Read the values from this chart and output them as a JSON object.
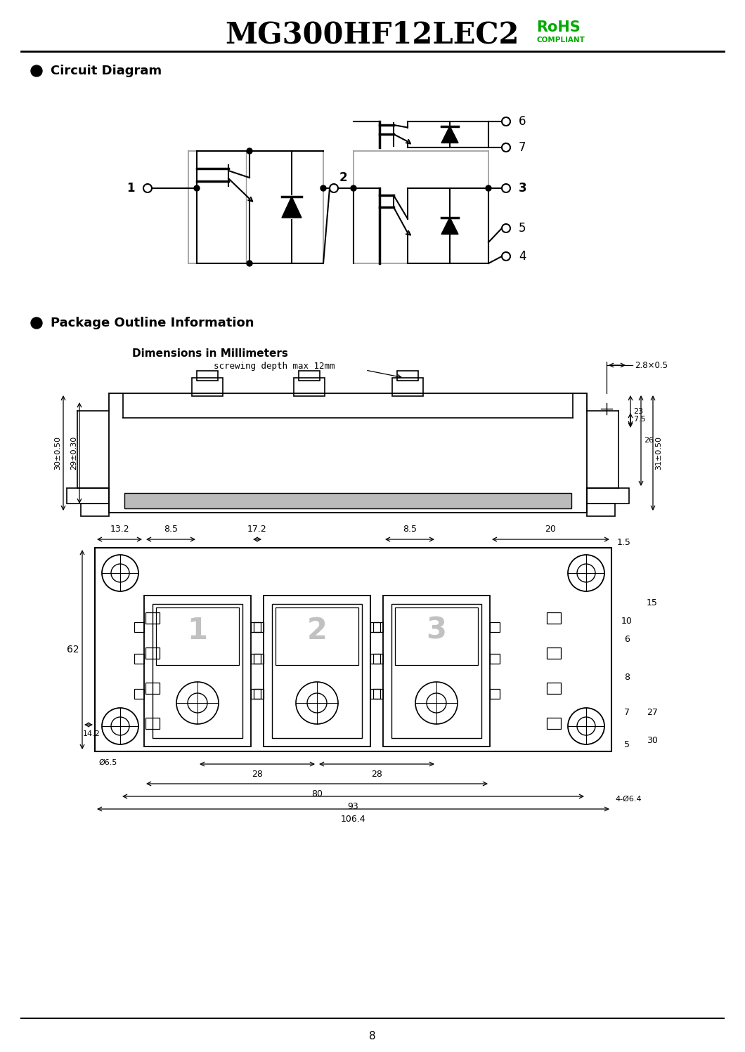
{
  "title_main": "MG300HF12LEC2",
  "title_rohs": "RoHS",
  "title_compliant": "COMPLIANT",
  "rohs_color": "#00aa00",
  "section1_bullet": "Circuit Diagram",
  "section2_bullet": "Package Outline Information",
  "dim_title": "Dimensions in Millimeters",
  "screwing_text": "screwing depth max 12mm",
  "dim_28x05": "2.8×0.5",
  "dim_30": "30±0.50",
  "dim_29": "29±0.30",
  "dim_75": "7.5",
  "dim_23": "23",
  "dim_26": "26",
  "dim_31": "31±0.50",
  "dim_132": "13.2",
  "dim_20": "20",
  "dim_15": "1.5",
  "dim_85a": "8.5",
  "dim_172": "17.2",
  "dim_85b": "8.5",
  "dim_62": "62",
  "dim_142": "14.2",
  "dim_065": "Ø6.5",
  "dim_10": "10",
  "dim_6": "6",
  "dim_8": "8",
  "dim_5": "5",
  "dim_7": "7",
  "dim_15b": "15",
  "dim_27": "27",
  "dim_30b": "30",
  "dim_28a": "28",
  "dim_28b": "28",
  "dim_80": "80",
  "dim_93": "93",
  "dim_1064": "106.4",
  "dim_4phi64": "4-Ø6.4",
  "page_number": "8",
  "bg_color": "#ffffff",
  "lc": "#000000",
  "gc": "#999999"
}
